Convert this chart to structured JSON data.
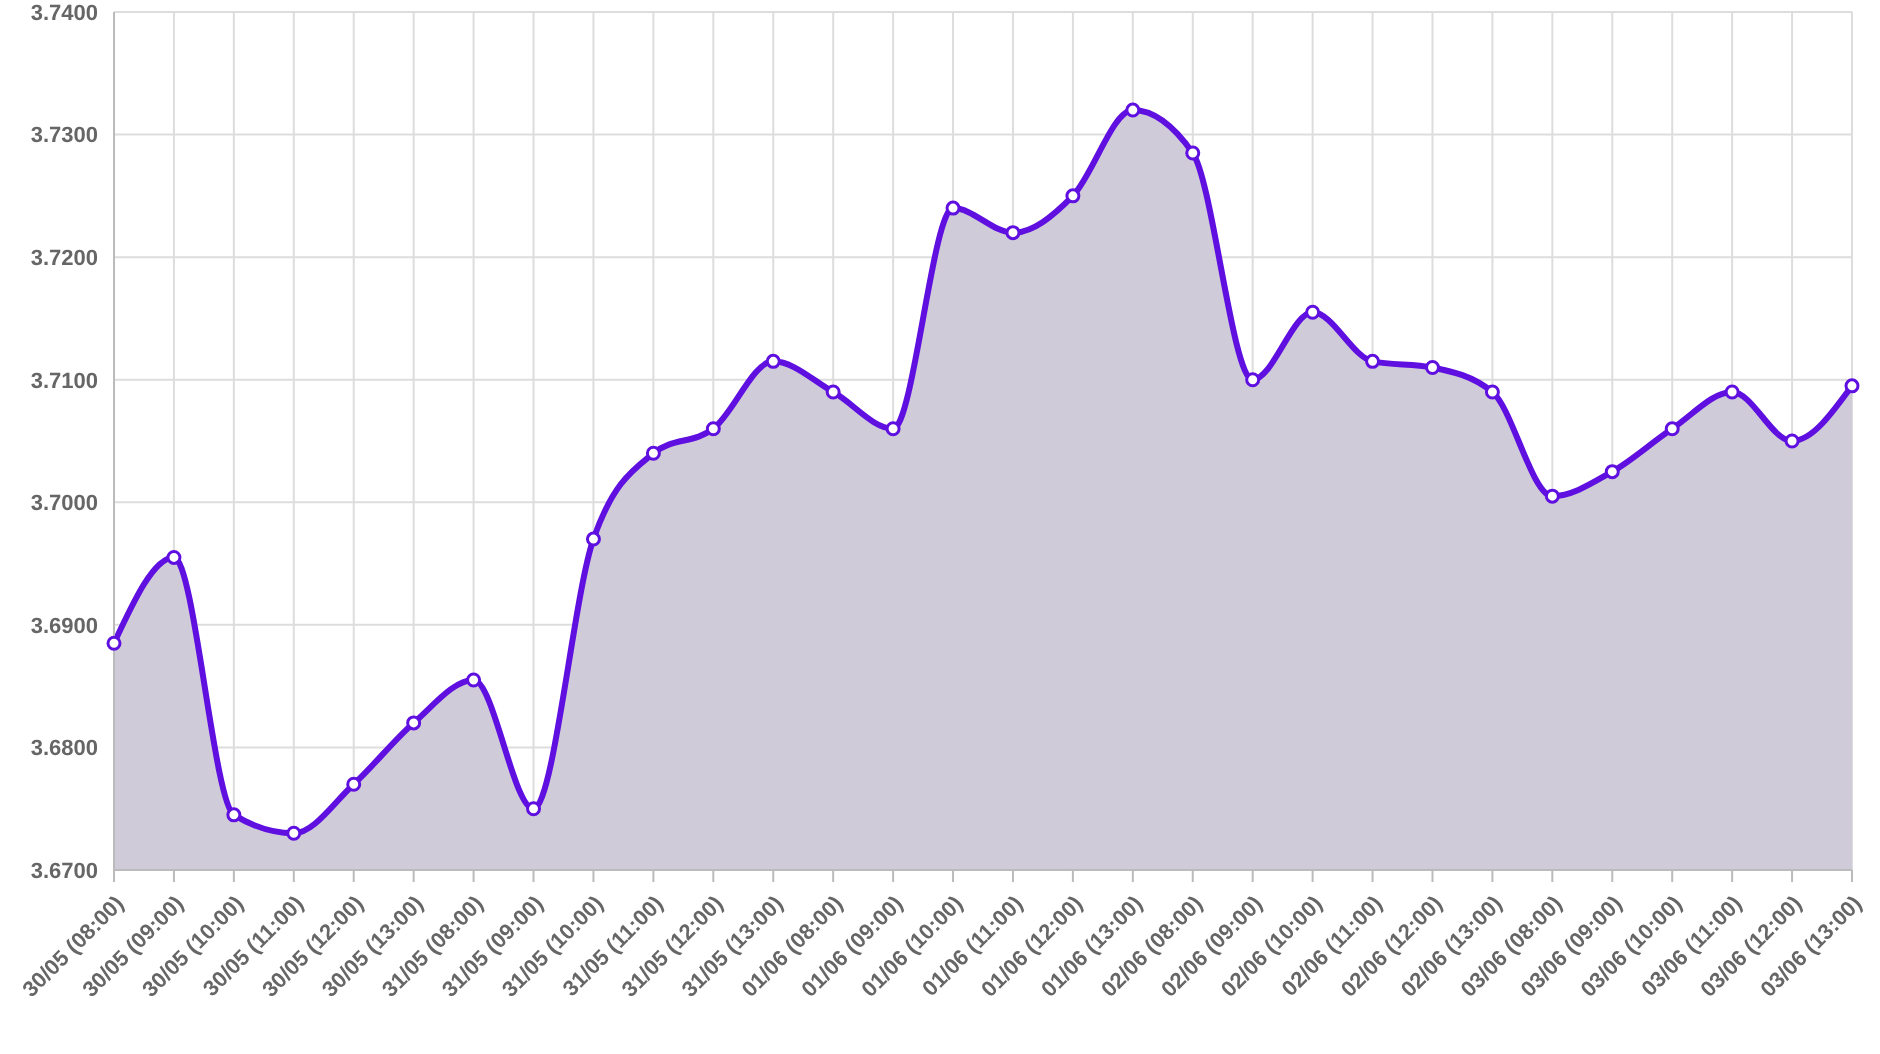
{
  "chart_data": {
    "type": "area",
    "categories": [
      "30/05 (08:00)",
      "30/05 (09:00)",
      "30/05 (10:00)",
      "30/05 (11:00)",
      "30/05 (12:00)",
      "30/05 (13:00)",
      "31/05 (08:00)",
      "31/05 (09:00)",
      "31/05 (10:00)",
      "31/05 (11:00)",
      "31/05 (12:00)",
      "31/05 (13:00)",
      "01/06 (08:00)",
      "01/06 (09:00)",
      "01/06 (10:00)",
      "01/06 (11:00)",
      "01/06 (12:00)",
      "01/06 (13:00)",
      "02/06 (08:00)",
      "02/06 (09:00)",
      "02/06 (10:00)",
      "02/06 (11:00)",
      "02/06 (12:00)",
      "02/06 (13:00)",
      "03/06 (08:00)",
      "03/06 (09:00)",
      "03/06 (10:00)",
      "03/06 (11:00)",
      "03/06 (12:00)",
      "03/06 (13:00)"
    ],
    "series": [
      {
        "color": "#5f0fe0",
        "values": [
          3.6885,
          3.6955,
          3.6745,
          3.673,
          3.677,
          3.682,
          3.6855,
          3.675,
          3.697,
          3.704,
          3.706,
          3.7115,
          3.709,
          3.706,
          3.724,
          3.722,
          3.725,
          3.732,
          3.7285,
          3.71,
          3.7155,
          3.7115,
          3.711,
          3.709,
          3.7005,
          3.7025,
          3.706,
          3.709,
          3.705,
          3.7095
        ]
      }
    ],
    "ylim": [
      3.67,
      3.74
    ],
    "yticks": [
      {
        "value": 3.67,
        "label": "3.6700"
      },
      {
        "value": 3.68,
        "label": "3.6800"
      },
      {
        "value": 3.69,
        "label": "3.6900"
      },
      {
        "value": 3.7,
        "label": "3.7000"
      },
      {
        "value": 3.71,
        "label": "3.7100"
      },
      {
        "value": 3.72,
        "label": "3.7200"
      },
      {
        "value": 3.73,
        "label": "3.7300"
      },
      {
        "value": 3.74,
        "label": "3.7400"
      }
    ],
    "grid": true,
    "marker": "circle"
  }
}
